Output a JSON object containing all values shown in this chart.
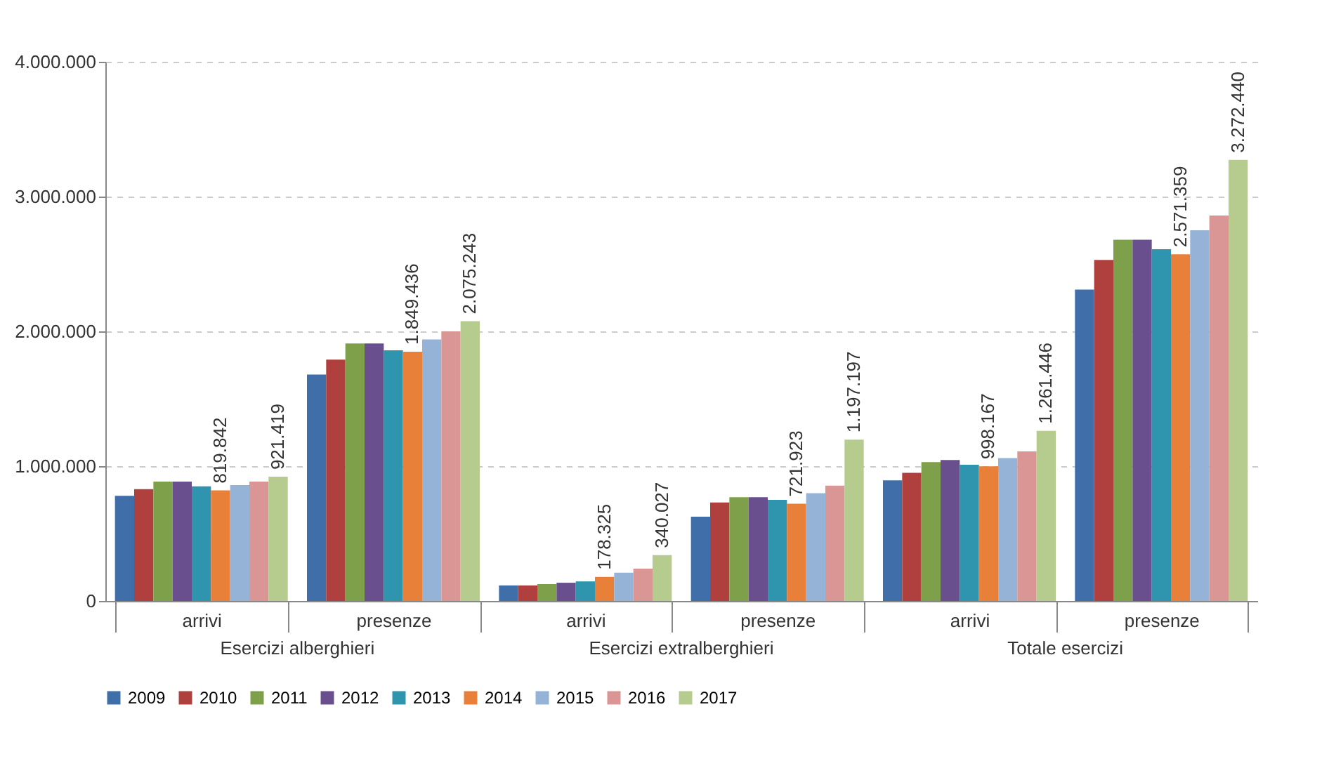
{
  "chart_data": {
    "type": "bar",
    "categories": [
      "arrivi",
      "presenze",
      "arrivi",
      "presenze",
      "arrivi",
      "presenze"
    ],
    "annotations": [
      "Esercizi alberghieri",
      "Esercizi extralberghieri",
      "Totale esercizi"
    ],
    "series": [
      {
        "name": "2009",
        "color": "#3f6ea8",
        "values": [
          780000,
          1680000,
          115000,
          625000,
          895000,
          2310000
        ]
      },
      {
        "name": "2010",
        "color": "#b0403d",
        "values": [
          830000,
          1790000,
          115000,
          730000,
          950000,
          2530000
        ]
      },
      {
        "name": "2011",
        "color": "#7ea04a",
        "values": [
          885000,
          1910000,
          125000,
          770000,
          1030000,
          2680000
        ]
      },
      {
        "name": "2012",
        "color": "#6a4f8e",
        "values": [
          885000,
          1910000,
          135000,
          770000,
          1045000,
          2680000
        ]
      },
      {
        "name": "2013",
        "color": "#2f95ae",
        "values": [
          850000,
          1860000,
          145000,
          750000,
          1010000,
          2610000
        ]
      },
      {
        "name": "2014",
        "color": "#e8803a",
        "values": [
          819842,
          1849436,
          178325,
          721923,
          998167,
          2571359
        ],
        "value_labels": [
          "819.842",
          "1.849.436",
          "178.325",
          "721.923",
          "998.167",
          "2.571.359"
        ]
      },
      {
        "name": "2015",
        "color": "#95b3d7",
        "values": [
          860000,
          1940000,
          210000,
          800000,
          1060000,
          2750000
        ]
      },
      {
        "name": "2016",
        "color": "#d99694",
        "values": [
          885000,
          2000000,
          240000,
          855000,
          1110000,
          2860000
        ]
      },
      {
        "name": "2017",
        "color": "#b5cc8e",
        "values": [
          921419,
          2075243,
          340027,
          1197197,
          1261446,
          3272440
        ],
        "value_labels": [
          "921.419",
          "2.075.243",
          "340.027",
          "1.197.197",
          "1.261.446",
          "3.272.440"
        ]
      }
    ],
    "ylim": [
      0,
      4000000
    ],
    "yticks": [
      {
        "value": 0,
        "label": "0"
      },
      {
        "value": 1000000,
        "label": "1.000.000"
      },
      {
        "value": 2000000,
        "label": "2.000.000"
      },
      {
        "value": 3000000,
        "label": "3.000.000"
      },
      {
        "value": 4000000,
        "label": "4.000.000"
      }
    ],
    "grid": "y",
    "legend": "bottom"
  }
}
